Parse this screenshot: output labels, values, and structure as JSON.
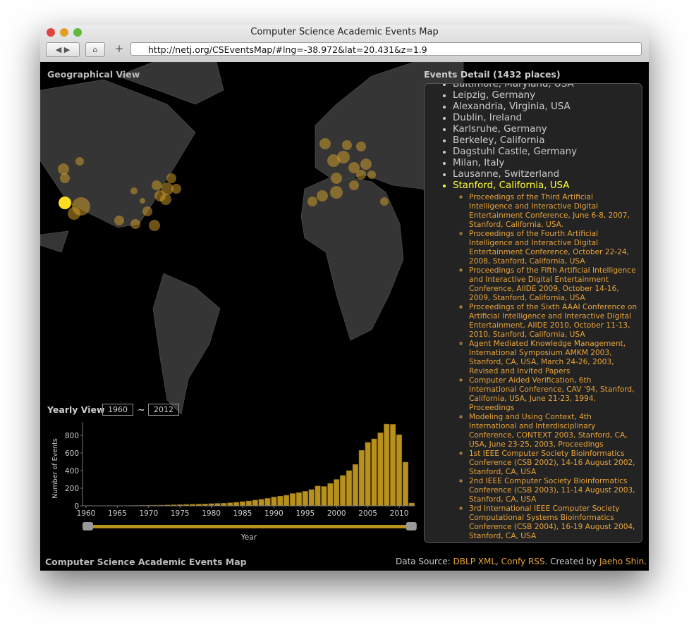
{
  "browser": {
    "title": "Computer Science Academic Events Map",
    "url": "http://netj.org/CSEventsMap/#lng=-38.972&lat=20.431&z=1.9"
  },
  "map_panel": {
    "title": "Geographical View"
  },
  "detail_panel": {
    "title": "Events Detail (1432 places)",
    "places": [
      "Baltimore, Maryland, USA",
      "Leipzig, Germany",
      "Alexandria, Virginia, USA",
      "Dublin, Ireland",
      "Karlsruhe, Germany",
      "Berkeley, California",
      "Dagstuhl Castle, Germany",
      "Milan, Italy",
      "Lausanne, Switzerland",
      "Stanford, California, USA"
    ],
    "selected_events": [
      "Proceedings of the Third Artificial Intelligence and Interactive Digital Entertainment Conference, June 6-8, 2007, Stanford, California, USA.",
      "Proceedings of the Fourth Artificial Intelligence and Interactive Digital Entertainment Conference, October 22-24, 2008, Stanford, California, USA",
      "Proceedings of the Fifth Artificial Intelligence and Interactive Digital Entertainment Conference, AIIDE 2009, October 14-16, 2009, Stanford, California, USA",
      "Proceedings of the Sixth AAAI Conference on Artificial Intelligence and Interactive Digital Entertainment, AIIDE 2010, October 11-13, 2010, Stanford, California, USA",
      "Agent Mediated Knowledge Management, International Symposium AMKM 2003, Stanford, CA, USA, March 24-26, 2003, Revised and Invited Papers",
      "Computer Aided Verification, 6th International Conference, CAV '94, Stanford, California, USA, June 21-23, 1994, Proceedings",
      "Modeling and Using Context, 4th International and Interdisciplinary Conference, CONTEXT 2003, Stanford, CA, USA, June 23-25, 2003, Proceedings",
      "1st IEEE Computer Society Bioinformatics Conference (CSB 2002), 14-16 August 2002, Stanford, CA, USA",
      "2nd IEEE Computer Society Bioinformatics Conference (CSB 2003), 11-14 August 2003, Stanford, CA, USA",
      "3rd International IEEE Computer Society Computational Systems Bioinformatics Conference (CSB 2004), 16-19 August 2004, Stanford, CA, USA"
    ]
  },
  "yearly_view": {
    "label": "Yearly View",
    "from": "1960",
    "separator": "~",
    "to": "2012"
  },
  "chart_data": {
    "type": "bar",
    "x_label": "Year",
    "y_label": "Number of Events",
    "color": "#b8901e",
    "x": [
      1960,
      1961,
      1962,
      1963,
      1964,
      1965,
      1966,
      1967,
      1968,
      1969,
      1970,
      1971,
      1972,
      1973,
      1974,
      1975,
      1976,
      1977,
      1978,
      1979,
      1980,
      1981,
      1982,
      1983,
      1984,
      1985,
      1986,
      1987,
      1988,
      1989,
      1990,
      1991,
      1992,
      1993,
      1994,
      1995,
      1996,
      1997,
      1998,
      1999,
      2000,
      2001,
      2002,
      2003,
      2004,
      2005,
      2006,
      2007,
      2008,
      2009,
      2010,
      2011,
      2012
    ],
    "values": [
      0,
      0,
      0,
      0,
      1,
      2,
      2,
      3,
      4,
      5,
      6,
      7,
      8,
      10,
      12,
      14,
      16,
      18,
      20,
      22,
      25,
      28,
      30,
      35,
      40,
      48,
      55,
      65,
      75,
      85,
      100,
      110,
      120,
      140,
      150,
      165,
      185,
      225,
      220,
      255,
      300,
      345,
      400,
      470,
      630,
      720,
      760,
      830,
      928,
      925,
      808,
      496,
      32
    ],
    "xlim": [
      1960,
      2012
    ],
    "xticks": [
      1960,
      1965,
      1970,
      1975,
      1980,
      1985,
      1990,
      1995,
      2000,
      2005,
      2010
    ],
    "ylim": [
      0,
      950
    ],
    "yticks": [
      0,
      200,
      400,
      600,
      800
    ]
  },
  "footer": {
    "title": "Computer Science Academic Events Map",
    "source_prefix": "Data Source:",
    "link1": "DBLP XML",
    "comma": ",",
    "link2": "Confy RSS",
    "created_by": ". Created by",
    "author": "Jaeho Shin",
    "period": "."
  }
}
